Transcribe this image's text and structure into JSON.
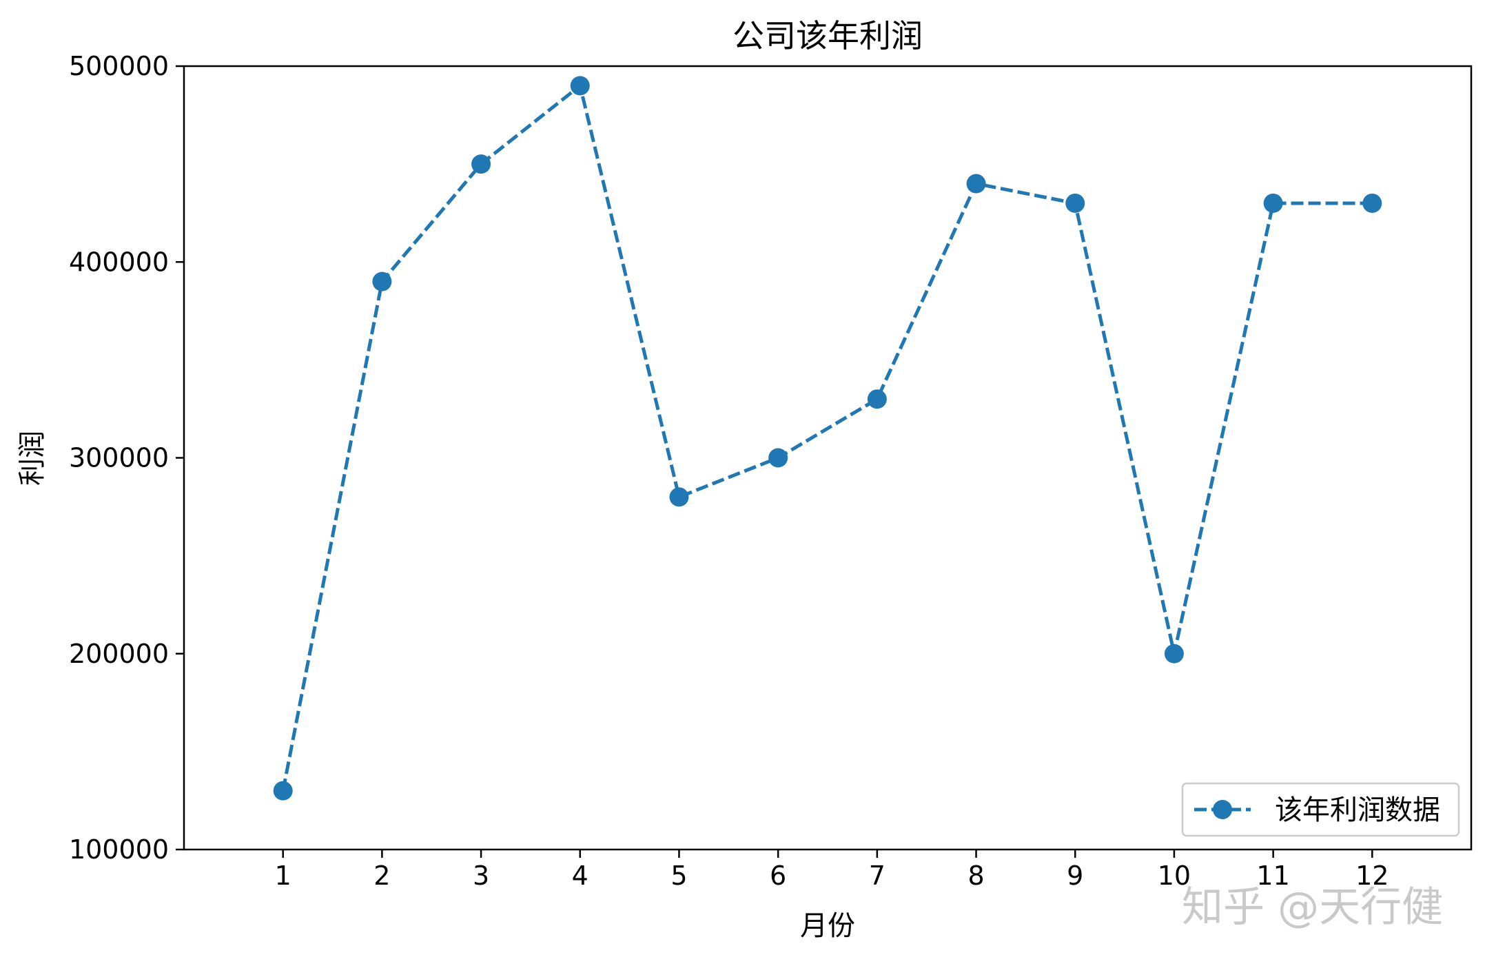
{
  "chart_data": {
    "type": "line",
    "title": "公司该年利润",
    "xlabel": "月份",
    "ylabel": "利润",
    "x": [
      1,
      2,
      3,
      4,
      5,
      6,
      7,
      8,
      9,
      10,
      11,
      12
    ],
    "x_tick_labels": [
      "1",
      "2",
      "3",
      "4",
      "5",
      "6",
      "7",
      "8",
      "9",
      "10",
      "11",
      "12"
    ],
    "series": [
      {
        "name": "该年利润数据",
        "values": [
          130000,
          390000,
          450000,
          490000,
          280000,
          300000,
          330000,
          440000,
          430000,
          200000,
          430000,
          430000
        ],
        "color": "#1f77b4",
        "line_style": "dashed",
        "marker": "circle"
      }
    ],
    "xlim": [
      0,
      13
    ],
    "ylim": [
      100000,
      500000
    ],
    "y_ticks": [
      100000,
      200000,
      300000,
      400000,
      500000
    ],
    "y_tick_labels": [
      "100000",
      "200000",
      "300000",
      "400000",
      "500000"
    ],
    "grid": false,
    "legend_position": "lower-right"
  },
  "watermark": "知乎 @天行健"
}
